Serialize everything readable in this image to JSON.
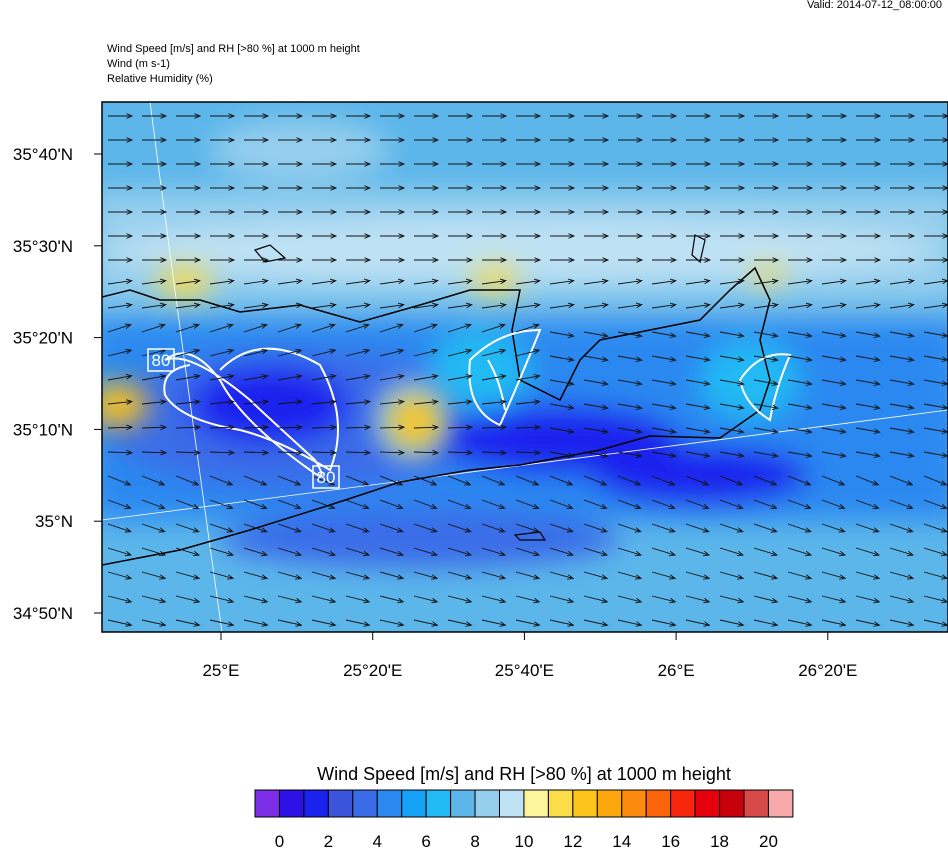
{
  "header": {
    "valid": "Valid: 2014-07-12_08:00:00",
    "title_lines": [
      "Wind Speed [m/s] and RH [>80 %] at 1000 m height",
      "Wind   (m s-1)",
      "Relative Humidity   (%)"
    ]
  },
  "map": {
    "x_labels": [
      "25°E",
      "25°20'E",
      "25°40'E",
      "26°E",
      "26°20'E"
    ],
    "y_labels": [
      "35°40'N",
      "35°30'N",
      "35°20'N",
      "35°10'N",
      "35°N",
      "34°50'N"
    ],
    "contour_labels": [
      "80",
      "80"
    ]
  },
  "colorbar": {
    "title": "Wind Speed [m/s] and RH [>80 %] at 1000 m height",
    "labels": [
      0,
      2,
      4,
      6,
      8,
      10,
      12,
      14,
      16,
      18,
      20
    ],
    "colors": [
      "#7c2ee6",
      "#2c12e6",
      "#1a22ee",
      "#3a55dc",
      "#3a6ce8",
      "#2a88f0",
      "#16a2f6",
      "#22baf4",
      "#5cb6ea",
      "#96cfee",
      "#bfe2f4",
      "#fcf59c",
      "#fcdc48",
      "#fcc41c",
      "#fca80c",
      "#fc8a0c",
      "#fc640c",
      "#f8260c",
      "#e6000c",
      "#c8000c",
      "#d84a4a",
      "#f8aaaa"
    ]
  }
}
